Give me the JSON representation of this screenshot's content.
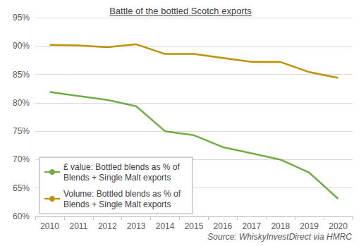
{
  "chart_data": {
    "type": "line",
    "title": "Battle of the bottled Scotch exports",
    "source": "Source: WhiskyInvestDirect via HMRC",
    "categories": [
      "2010",
      "2011",
      "2012",
      "2013",
      "2014",
      "2015",
      "2016",
      "2017",
      "2018",
      "2019",
      "2020"
    ],
    "series": [
      {
        "name": "£ value: Bottled blends as % of Blends + Single Malt exports",
        "color": "#70ad47",
        "values": [
          81.9,
          81.2,
          80.5,
          79.4,
          75.0,
          74.3,
          72.2,
          71.1,
          70.0,
          67.7,
          63.1
        ]
      },
      {
        "name": "Volume: Bottled blends as % of Blends + Single Malt exports",
        "color": "#bf9000",
        "values": [
          90.2,
          90.1,
          89.8,
          90.3,
          88.6,
          88.6,
          87.9,
          87.2,
          87.2,
          85.4,
          84.4
        ]
      }
    ],
    "ylim": [
      60,
      95
    ],
    "yticks": [
      {
        "value": 60,
        "label": "60%"
      },
      {
        "value": 65,
        "label": "65%"
      },
      {
        "value": 70,
        "label": "70%"
      },
      {
        "value": 75,
        "label": "75%"
      },
      {
        "value": 80,
        "label": "80%"
      },
      {
        "value": 85,
        "label": "85%"
      },
      {
        "value": 90,
        "label": "90%"
      },
      {
        "value": 95,
        "label": "95%"
      }
    ],
    "grid": true,
    "legend": "lower left"
  }
}
